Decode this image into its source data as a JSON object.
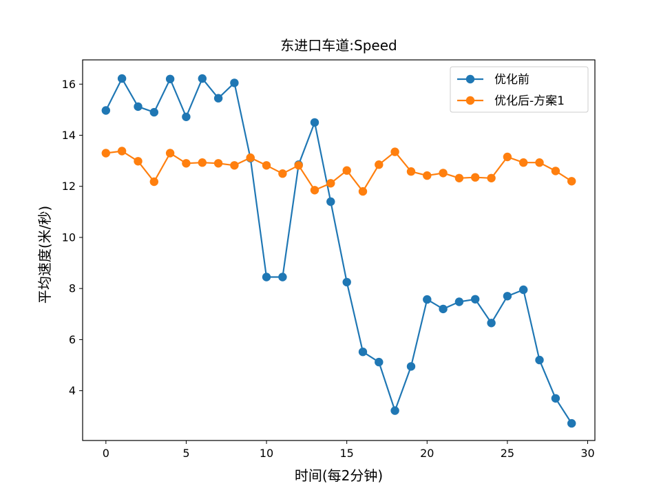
{
  "chart_data": {
    "type": "line",
    "title": "东进口车道:Speed",
    "xlabel": "时间(每2分钟)",
    "ylabel": "平均速度(米/秒)",
    "xlim": [
      -1.45,
      30.45
    ],
    "ylim": [
      2.05,
      16.95
    ],
    "xticks": [
      0,
      5,
      10,
      15,
      20,
      25,
      30
    ],
    "yticks": [
      4,
      6,
      8,
      10,
      12,
      14,
      16
    ],
    "grid": false,
    "legend_position": "top-right",
    "x": [
      0,
      1,
      2,
      3,
      4,
      5,
      6,
      7,
      8,
      9,
      10,
      11,
      12,
      13,
      14,
      15,
      16,
      17,
      18,
      19,
      20,
      21,
      22,
      23,
      24,
      25,
      26,
      27,
      28,
      29
    ],
    "series": [
      {
        "name": "优化前",
        "color": "#1f77b4",
        "marker": "circle",
        "values": [
          14.97,
          16.22,
          15.12,
          14.9,
          16.2,
          14.72,
          16.22,
          15.45,
          16.05,
          13.1,
          8.45,
          8.45,
          12.85,
          14.5,
          11.4,
          8.25,
          5.52,
          5.12,
          3.22,
          4.95,
          7.57,
          7.2,
          7.48,
          7.58,
          6.65,
          7.7,
          7.95,
          5.2,
          3.7,
          2.72
        ]
      },
      {
        "name": "优化后-方案1",
        "color": "#ff7f0e",
        "marker": "circle",
        "values": [
          13.3,
          13.38,
          12.98,
          12.18,
          13.3,
          12.9,
          12.93,
          12.9,
          12.82,
          13.12,
          12.82,
          12.5,
          12.82,
          11.85,
          12.12,
          12.62,
          11.8,
          12.85,
          13.35,
          12.58,
          12.42,
          12.52,
          12.32,
          12.35,
          12.32,
          13.15,
          12.93,
          12.93,
          12.6,
          12.2
        ]
      }
    ]
  }
}
